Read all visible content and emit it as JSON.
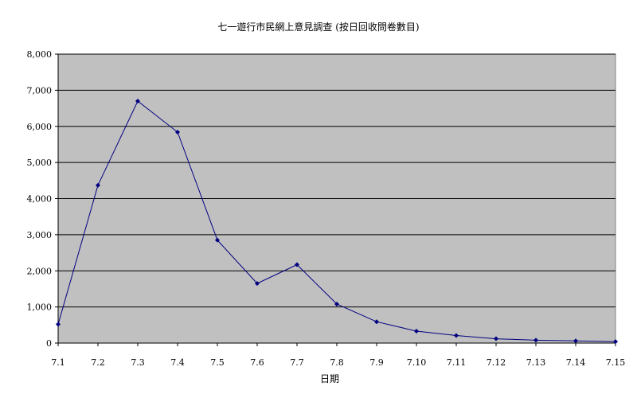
{
  "chart_data": {
    "type": "line",
    "title": "七一遊行市民網上意見調查 (按日回收問卷數目)",
    "xlabel": "日期",
    "ylabel": "",
    "categories": [
      "7.1",
      "7.2",
      "7.3",
      "7.4",
      "7.5",
      "7.6",
      "7.7",
      "7.8",
      "7.9",
      "7.10",
      "7.11",
      "7.12",
      "7.13",
      "7.14",
      "7.15"
    ],
    "series": [
      {
        "values": [
          520,
          4370,
          6700,
          5840,
          2850,
          1650,
          2170,
          1080,
          590,
          330,
          210,
          120,
          80,
          60,
          40
        ]
      }
    ],
    "ylim": [
      0,
      8000
    ],
    "yticks": [
      "0",
      "1,000",
      "2,000",
      "3,000",
      "4,000",
      "5,000",
      "6,000",
      "7,000",
      "8,000"
    ],
    "grid": true,
    "legend": "none",
    "colors": {
      "plot_background": "#c0c0c0",
      "line": "#000080",
      "gridline": "#000000"
    }
  }
}
